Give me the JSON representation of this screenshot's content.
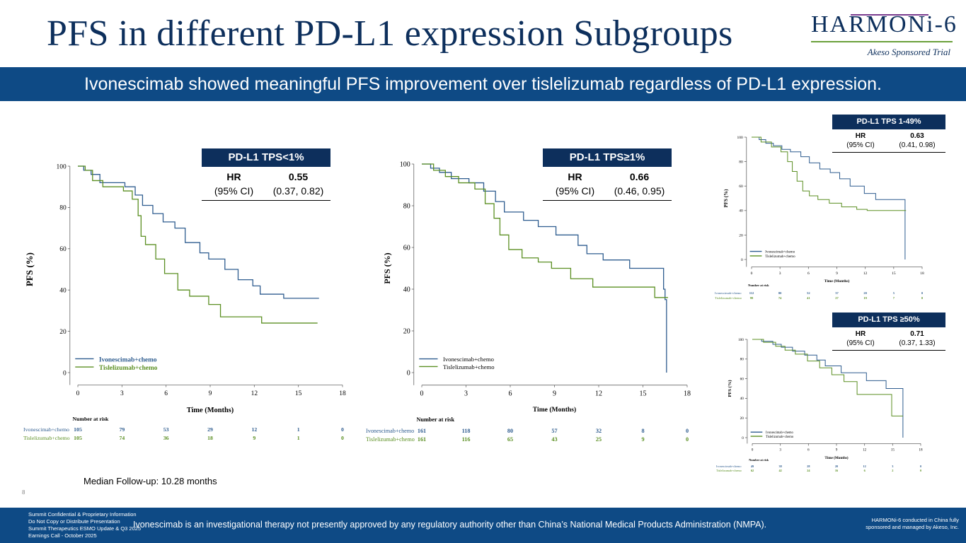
{
  "header": {
    "title": "PFS in different PD-L1 expression Subgroups",
    "logo_text": "HARMONi-6",
    "logo_subtitle": "Akeso Sponsored Trial",
    "banner": "Ivonescimab showed meaningful PFS improvement over tislelizumab regardless of PD-L1 expression."
  },
  "colors": {
    "navy": "#0d2f5c",
    "banner": "#0e4a85",
    "ivonescimab": "#2e5c8f",
    "tislelizumab": "#5b8f22"
  },
  "hr_boxes": [
    {
      "title": "PD-L1 TPS<1%",
      "label1": "HR",
      "label2": "(95% CI)",
      "value1": "0.55",
      "value2": "(0.37, 0.82)"
    },
    {
      "title": "PD-L1 TPS≥1%",
      "label1": "HR",
      "label2": "(95% CI)",
      "value1": "0.66",
      "value2": "(0.46, 0.95)"
    },
    {
      "title": "PD-L1 TPS 1-49%",
      "label1": "HR",
      "label2": "(95% CI)",
      "value1": "0.63",
      "value2": "(0.41, 0.98)"
    },
    {
      "title": "PD-L1 TPS ≥50%",
      "label1": "HR",
      "label2": "(95% CI)",
      "value1": "0.71",
      "value2": "(0.37, 1.33)"
    }
  ],
  "chart_data": [
    {
      "type": "line",
      "subgroup": "PD-L1 TPS<1%",
      "xlabel": "Time (Months)",
      "ylabel": "PFS (%)",
      "xticks": [
        0,
        3,
        6,
        9,
        12,
        15,
        18
      ],
      "yticks": [
        0,
        20,
        40,
        60,
        80,
        100
      ],
      "risk_title": "Number at risk",
      "series": [
        {
          "name": "Ivonescimab+chemo",
          "x": [
            0,
            0.4,
            0.9,
            1.5,
            3.2,
            3.9,
            4.4,
            5.1,
            5.8,
            6.6,
            7.3,
            8.3,
            8.9,
            10.0,
            10.9,
            11.9,
            12.4,
            14.0,
            16.4
          ],
          "y": [
            100,
            98,
            96,
            92,
            90,
            86,
            81,
            77,
            73,
            70,
            63,
            58,
            55,
            50,
            45,
            42,
            38,
            36,
            36
          ],
          "risk": [
            105,
            79,
            53,
            29,
            12,
            1,
            0
          ]
        },
        {
          "name": "Tislelizumab+chemo",
          "x": [
            0,
            0.5,
            1.0,
            1.7,
            3.1,
            3.7,
            4.1,
            4.3,
            4.6,
            5.3,
            5.9,
            6.8,
            7.6,
            8.9,
            9.7,
            12.5,
            16.3
          ],
          "y": [
            100,
            98,
            93,
            90,
            88,
            84,
            76,
            66,
            62,
            55,
            48,
            40,
            37,
            33,
            27,
            24,
            24
          ],
          "risk": [
            105,
            74,
            36,
            18,
            9,
            1,
            0
          ]
        }
      ]
    },
    {
      "type": "line",
      "subgroup": "PD-L1 TPS≥1%",
      "xlabel": "Time (Months)",
      "ylabel": "PFS (%)",
      "xticks": [
        0,
        3,
        6,
        9,
        12,
        15,
        18
      ],
      "yticks": [
        0,
        20,
        40,
        60,
        80,
        100
      ],
      "risk_title": "Number at risk",
      "series": [
        {
          "name": "Ivonescimab+chemo",
          "x": [
            0,
            0.6,
            1.2,
            2.0,
            3.2,
            4.2,
            5.0,
            5.6,
            6.9,
            7.9,
            9.1,
            10.6,
            11.2,
            12.3,
            14.1,
            16.4,
            16.5,
            16.6
          ],
          "y": [
            100,
            98,
            96,
            93,
            91,
            87,
            82,
            77,
            73,
            70,
            66,
            61,
            57,
            54,
            50,
            40,
            35,
            0
          ],
          "risk": [
            161,
            118,
            80,
            57,
            32,
            8,
            0
          ]
        },
        {
          "name": "Tislelizumab+chemo",
          "x": [
            0,
            0.8,
            1.6,
            2.5,
            3.6,
            4.3,
            4.9,
            5.3,
            5.9,
            6.8,
            7.9,
            8.8,
            10.1,
            11.6,
            13.3,
            15.8,
            16.7
          ],
          "y": [
            100,
            97,
            94,
            91,
            88,
            81,
            74,
            66,
            59,
            55,
            53,
            50,
            45,
            41,
            41,
            36,
            36
          ],
          "risk": [
            161,
            116,
            65,
            43,
            25,
            9,
            0
          ]
        }
      ]
    },
    {
      "type": "line",
      "subgroup": "PD-L1 TPS 1-49%",
      "xlabel": "Time (Months)",
      "ylabel": "PFS (%)",
      "xticks": [
        0,
        3,
        6,
        9,
        12,
        15,
        18
      ],
      "yticks": [
        0,
        20,
        40,
        60,
        80,
        100
      ],
      "risk_title": "Number at risk",
      "series": [
        {
          "name": "Ivonescimab+chemo",
          "x": [
            0,
            0.8,
            1.5,
            2.3,
            3.2,
            4.1,
            5.2,
            6.1,
            7.2,
            8.3,
            9.3,
            10.4,
            11.9,
            13.1,
            16.1,
            16.2
          ],
          "y": [
            100,
            98,
            95,
            93,
            90,
            88,
            84,
            79,
            74,
            71,
            66,
            60,
            54,
            49,
            49,
            0
          ],
          "risk": [
            112,
            80,
            52,
            37,
            20,
            5,
            0
          ]
        },
        {
          "name": "Tislelizumab+chemo",
          "x": [
            0,
            1.0,
            2.1,
            3.1,
            3.8,
            4.3,
            4.8,
            5.4,
            6.1,
            7.0,
            8.2,
            9.5,
            11.1,
            12.2,
            16.3
          ],
          "y": [
            100,
            96,
            92,
            88,
            80,
            72,
            64,
            56,
            52,
            49,
            46,
            43,
            41,
            40,
            40
          ],
          "risk": [
            99,
            74,
            41,
            27,
            19,
            7,
            0
          ]
        }
      ]
    },
    {
      "type": "line",
      "subgroup": "PD-L1 TPS ≥50%",
      "xlabel": "Time (Months)",
      "ylabel": "PFS (%)",
      "xticks": [
        0,
        3,
        6,
        9,
        12,
        15,
        18
      ],
      "yticks": [
        0,
        20,
        40,
        60,
        80,
        100
      ],
      "risk_title": "Number at risk",
      "series": [
        {
          "name": "Ivonescimab+chemo",
          "x": [
            0,
            1.0,
            2.2,
            3.1,
            4.3,
            5.6,
            6.9,
            7.8,
            9.5,
            12.2,
            14.3,
            16.0,
            16.1
          ],
          "y": [
            100,
            98,
            95,
            92,
            88,
            84,
            79,
            73,
            66,
            58,
            50,
            50,
            0
          ],
          "risk": [
            49,
            38,
            28,
            20,
            12,
            3,
            0
          ]
        },
        {
          "name": "Tislelizumab+chemo",
          "x": [
            0,
            1.2,
            2.5,
            3.5,
            4.6,
            5.9,
            7.2,
            8.5,
            9.8,
            11.2,
            14.9,
            16.1
          ],
          "y": [
            100,
            97,
            93,
            89,
            85,
            78,
            71,
            64,
            57,
            44,
            22,
            22
          ],
          "risk": [
            62,
            42,
            24,
            16,
            6,
            2,
            0
          ]
        }
      ]
    }
  ],
  "followup": "Median Follow-up: 10.28 months",
  "page_number": "8",
  "footer": {
    "left_lines": [
      "Summit Confidential & Proprietary Information",
      "Do Not Copy or Distribute Presentation",
      "Summit Therapeutics ESMO Update & Q3 2025",
      "Earnings Call - October 2025"
    ],
    "center": "Ivonescimab is an investigational therapy not presently approved by any regulatory authority other than China’s National Medical Products Administration (NMPA).",
    "right_lines": [
      "HARMONi-6 conducted in China fully",
      "sponsored and managed by Akeso, Inc."
    ]
  }
}
